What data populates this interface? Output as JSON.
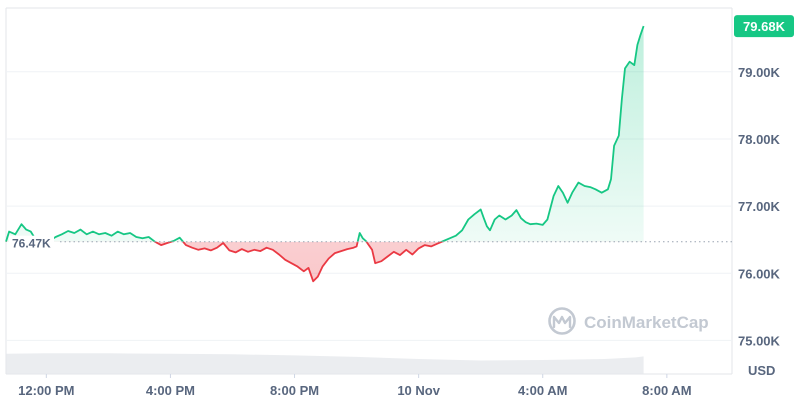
{
  "chart_data": {
    "type": "line",
    "title": "",
    "xlabel": "",
    "ylabel": "",
    "currency_unit": "USD",
    "reference_price_label": "76.47K",
    "reference_price": 76470,
    "current_price_label": "79.68K",
    "current_price": 79680,
    "ylim": [
      74500,
      79950
    ],
    "xlim_hours": [
      -0.3,
      23.1
    ],
    "y_ticks": [
      {
        "value": 75000,
        "label": "75.00K"
      },
      {
        "value": 76000,
        "label": "76.00K"
      },
      {
        "value": 77000,
        "label": "77.00K"
      },
      {
        "value": 78000,
        "label": "78.00K"
      },
      {
        "value": 79000,
        "label": "79.00K"
      }
    ],
    "x_ticks": [
      {
        "hour": 1.0,
        "label": "12:00 PM"
      },
      {
        "hour": 5.0,
        "label": "4:00 PM"
      },
      {
        "hour": 9.0,
        "label": "8:00 PM"
      },
      {
        "hour": 13.0,
        "label": "10 Nov"
      },
      {
        "hour": 17.0,
        "label": "4:00 AM"
      },
      {
        "hour": 21.0,
        "label": "8:00 AM"
      }
    ],
    "series": [
      {
        "points": [
          [
            -0.3,
            76470
          ],
          [
            -0.2,
            76620
          ],
          [
            0.0,
            76580
          ],
          [
            0.2,
            76730
          ],
          [
            0.35,
            76650
          ],
          [
            0.5,
            76620
          ],
          [
            0.7,
            76470
          ],
          [
            0.9,
            76420
          ],
          [
            1.1,
            76480
          ],
          [
            1.3,
            76540
          ],
          [
            1.5,
            76580
          ],
          [
            1.7,
            76630
          ],
          [
            1.9,
            76600
          ],
          [
            2.1,
            76650
          ],
          [
            2.3,
            76580
          ],
          [
            2.5,
            76620
          ],
          [
            2.7,
            76580
          ],
          [
            2.9,
            76600
          ],
          [
            3.1,
            76560
          ],
          [
            3.3,
            76620
          ],
          [
            3.5,
            76580
          ],
          [
            3.7,
            76600
          ],
          [
            3.9,
            76540
          ],
          [
            4.1,
            76520
          ],
          [
            4.3,
            76540
          ],
          [
            4.5,
            76470
          ],
          [
            4.7,
            76420
          ],
          [
            4.9,
            76450
          ],
          [
            5.1,
            76480
          ],
          [
            5.3,
            76530
          ],
          [
            5.5,
            76420
          ],
          [
            5.7,
            76380
          ],
          [
            5.9,
            76350
          ],
          [
            6.1,
            76370
          ],
          [
            6.3,
            76340
          ],
          [
            6.5,
            76380
          ],
          [
            6.7,
            76450
          ],
          [
            6.9,
            76340
          ],
          [
            7.1,
            76310
          ],
          [
            7.3,
            76360
          ],
          [
            7.5,
            76320
          ],
          [
            7.7,
            76350
          ],
          [
            7.9,
            76330
          ],
          [
            8.1,
            76380
          ],
          [
            8.3,
            76350
          ],
          [
            8.5,
            76280
          ],
          [
            8.7,
            76200
          ],
          [
            8.9,
            76150
          ],
          [
            9.1,
            76100
          ],
          [
            9.3,
            76030
          ],
          [
            9.45,
            76080
          ],
          [
            9.6,
            75880
          ],
          [
            9.75,
            75950
          ],
          [
            9.9,
            76100
          ],
          [
            10.1,
            76220
          ],
          [
            10.3,
            76300
          ],
          [
            10.5,
            76330
          ],
          [
            10.7,
            76360
          ],
          [
            10.9,
            76380
          ],
          [
            11.0,
            76400
          ],
          [
            11.1,
            76600
          ],
          [
            11.2,
            76520
          ],
          [
            11.3,
            76480
          ],
          [
            11.5,
            76350
          ],
          [
            11.6,
            76150
          ],
          [
            11.8,
            76180
          ],
          [
            12.0,
            76250
          ],
          [
            12.2,
            76320
          ],
          [
            12.4,
            76270
          ],
          [
            12.6,
            76350
          ],
          [
            12.8,
            76280
          ],
          [
            13.0,
            76370
          ],
          [
            13.2,
            76420
          ],
          [
            13.4,
            76400
          ],
          [
            13.6,
            76440
          ],
          [
            13.8,
            76480
          ],
          [
            14.0,
            76520
          ],
          [
            14.2,
            76560
          ],
          [
            14.4,
            76640
          ],
          [
            14.6,
            76800
          ],
          [
            14.8,
            76880
          ],
          [
            15.0,
            76950
          ],
          [
            15.1,
            76820
          ],
          [
            15.2,
            76700
          ],
          [
            15.3,
            76640
          ],
          [
            15.45,
            76800
          ],
          [
            15.6,
            76860
          ],
          [
            15.8,
            76800
          ],
          [
            16.0,
            76860
          ],
          [
            16.15,
            76940
          ],
          [
            16.3,
            76820
          ],
          [
            16.45,
            76760
          ],
          [
            16.6,
            76730
          ],
          [
            16.8,
            76740
          ],
          [
            17.0,
            76720
          ],
          [
            17.15,
            76800
          ],
          [
            17.35,
            77150
          ],
          [
            17.5,
            77300
          ],
          [
            17.65,
            77200
          ],
          [
            17.8,
            77050
          ],
          [
            17.95,
            77200
          ],
          [
            18.15,
            77350
          ],
          [
            18.35,
            77300
          ],
          [
            18.55,
            77280
          ],
          [
            18.7,
            77250
          ],
          [
            18.9,
            77200
          ],
          [
            19.1,
            77250
          ],
          [
            19.2,
            77400
          ],
          [
            19.3,
            77900
          ],
          [
            19.45,
            78050
          ],
          [
            19.55,
            78600
          ],
          [
            19.65,
            79050
          ],
          [
            19.8,
            79150
          ],
          [
            19.95,
            79100
          ],
          [
            20.05,
            79400
          ],
          [
            20.15,
            79550
          ],
          [
            20.25,
            79680
          ]
        ]
      }
    ],
    "volume": [
      [
        -0.3,
        0.78
      ],
      [
        1.0,
        0.8
      ],
      [
        3.0,
        0.8
      ],
      [
        5.0,
        0.78
      ],
      [
        7.0,
        0.76
      ],
      [
        9.0,
        0.72
      ],
      [
        11.0,
        0.66
      ],
      [
        13.0,
        0.58
      ],
      [
        15.0,
        0.52
      ],
      [
        17.0,
        0.54
      ],
      [
        19.0,
        0.58
      ],
      [
        20.0,
        0.64
      ],
      [
        20.25,
        0.68
      ]
    ],
    "grid": true,
    "watermark": "CoinMarketCap",
    "colors": {
      "up_line": "#16c784",
      "down_line": "#ea3943",
      "up_fill": "#16c784",
      "down_fill": "#ea3943",
      "badge": "#16c784",
      "badge_text": "#ffffff",
      "volume": "#e4e7eb",
      "axis_text": "#58667e",
      "grid": "#eff2f5",
      "watermark": "#c3c9d2"
    }
  }
}
